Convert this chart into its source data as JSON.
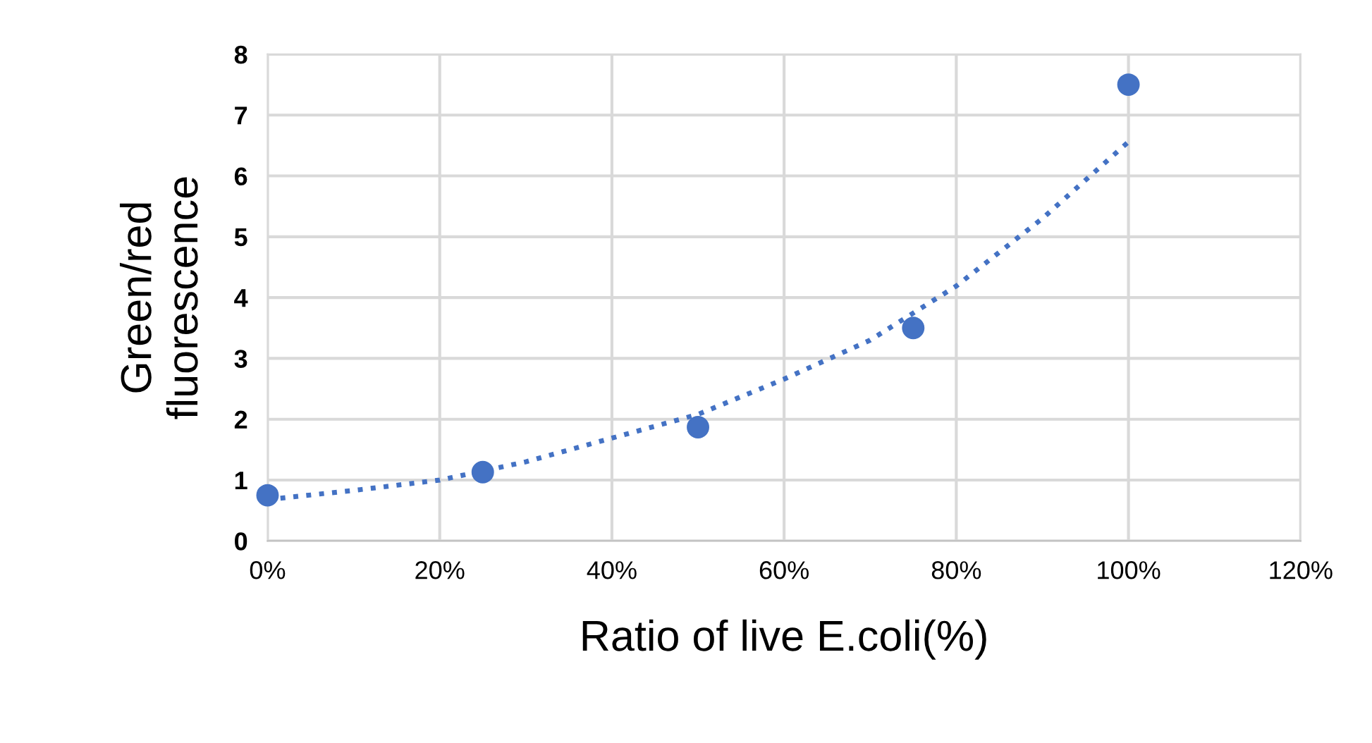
{
  "chart_data": {
    "type": "scatter",
    "xlabel": "Ratio of live E.coli(%)",
    "ylabel": "Green/red\nfluorescence",
    "x": [
      0,
      25,
      50,
      75,
      100
    ],
    "series": [
      {
        "color": "#4472c4",
        "values": [
          0.75,
          1.13,
          1.87,
          3.5,
          7.5
        ],
        "marker": "circle"
      },
      {
        "type": "line",
        "color": "#4472c4",
        "x": [
          0,
          10,
          20,
          30,
          40,
          50,
          60,
          70,
          80,
          90,
          100
        ],
        "values": [
          0.68,
          0.83,
          1.0,
          1.3,
          1.69,
          2.08,
          2.66,
          3.3,
          4.19,
          5.3,
          6.56
        ],
        "line_style": "dotted",
        "marker": "none"
      }
    ],
    "xlim": [
      0,
      120
    ],
    "xticks": [
      {
        "value": 0,
        "label": "0%"
      },
      {
        "value": 20,
        "label": "20%"
      },
      {
        "value": 40,
        "label": "40%"
      },
      {
        "value": 60,
        "label": "60%"
      },
      {
        "value": 80,
        "label": "80%"
      },
      {
        "value": 100,
        "label": "100%"
      },
      {
        "value": 120,
        "label": "120%"
      }
    ],
    "ylim": [
      0,
      8
    ],
    "yticks": [
      0,
      1,
      2,
      3,
      4,
      5,
      6,
      7,
      8
    ],
    "grid": true
  }
}
